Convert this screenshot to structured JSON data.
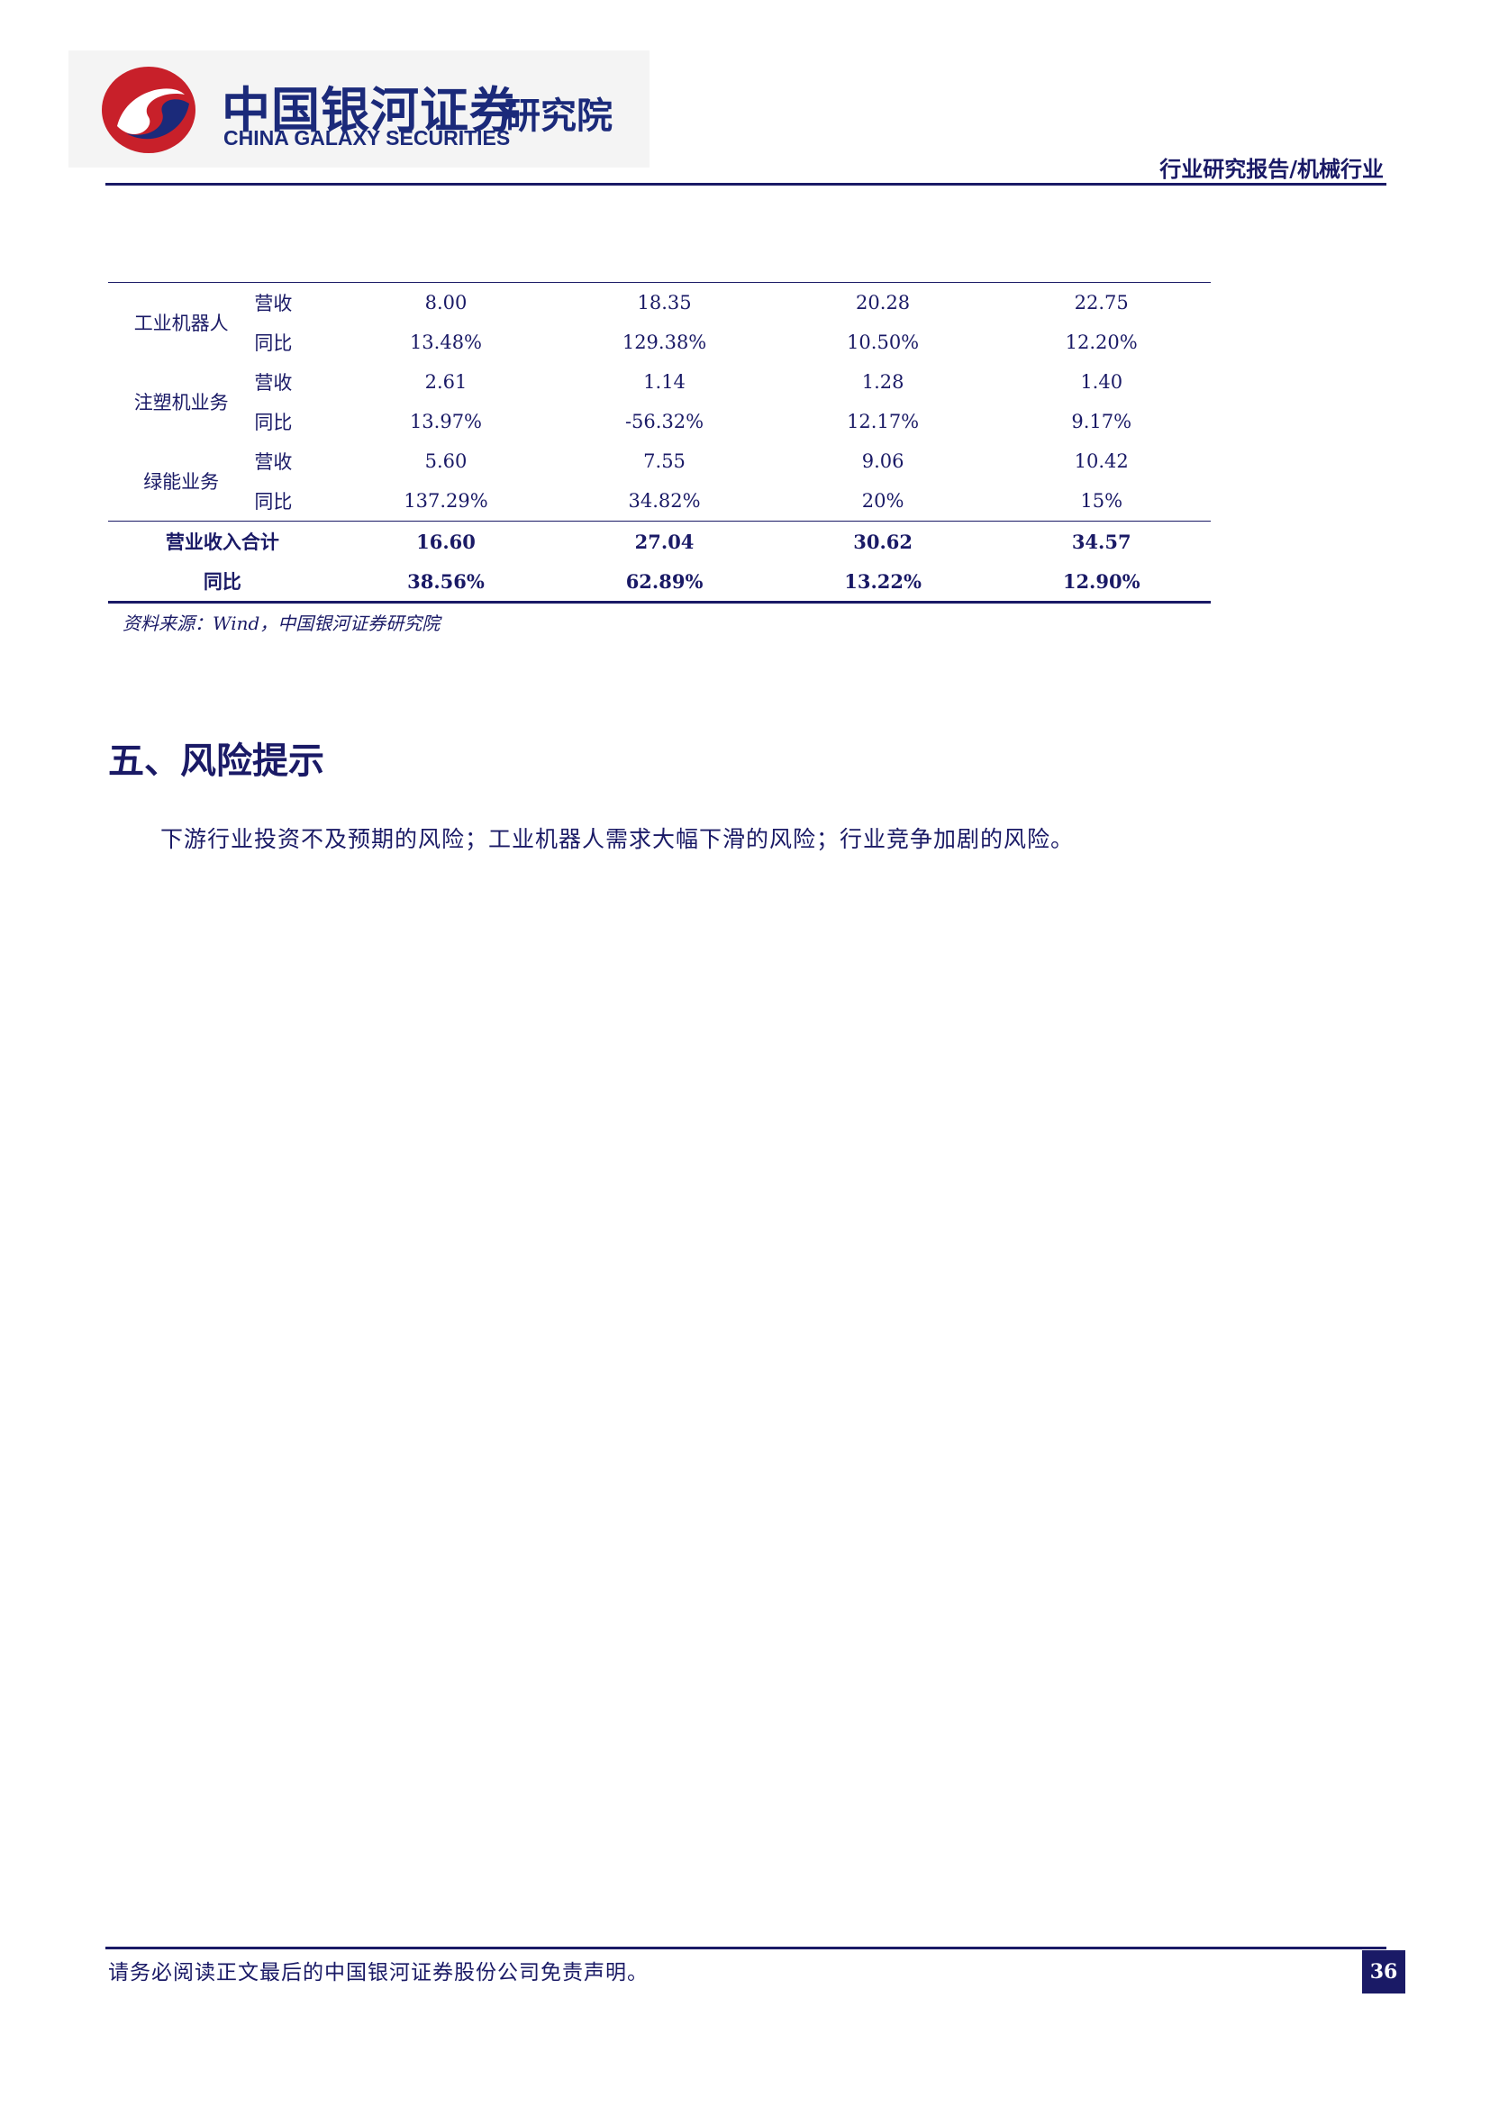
{
  "header": {
    "logo_cn": "中国银河证券",
    "logo_en": "CHINA GALAXY SECURITIES",
    "logo_inst": "研究院",
    "report_type": "行业研究报告/机械行业",
    "colors": {
      "brand_navy": "#1a1a66",
      "logo_red": "#c8202a",
      "logo_blue": "#1b2a7a"
    }
  },
  "table": {
    "segments": [
      {
        "name": "工业机器人",
        "rows": [
          {
            "label": "营收",
            "values": [
              "8.00",
              "18.35",
              "20.28",
              "22.75"
            ]
          },
          {
            "label": "同比",
            "values": [
              "13.48%",
              "129.38%",
              "10.50%",
              "12.20%"
            ]
          }
        ]
      },
      {
        "name": "注塑机业务",
        "rows": [
          {
            "label": "营收",
            "values": [
              "2.61",
              "1.14",
              "1.28",
              "1.40"
            ]
          },
          {
            "label": "同比",
            "values": [
              "13.97%",
              "-56.32%",
              "12.17%",
              "9.17%"
            ]
          }
        ]
      },
      {
        "name": "绿能业务",
        "rows": [
          {
            "label": "营收",
            "values": [
              "5.60",
              "7.55",
              "9.06",
              "10.42"
            ]
          },
          {
            "label": "同比",
            "values": [
              "137.29%",
              "34.82%",
              "20%",
              "15%"
            ]
          }
        ]
      }
    ],
    "totals": [
      {
        "label": "营业收入合计",
        "values": [
          "16.60",
          "27.04",
          "30.62",
          "34.57"
        ]
      },
      {
        "label": "同比",
        "values": [
          "38.56%",
          "62.89%",
          "13.22%",
          "12.90%"
        ]
      }
    ]
  },
  "source_note": "资料来源：Wind，中国银河证券研究院",
  "section": {
    "title": "五、风险提示",
    "paragraph": "下游行业投资不及预期的风险；工业机器人需求大幅下滑的风险；行业竞争加剧的风险。"
  },
  "footer": {
    "disclaimer": "请务必阅读正文最后的中国银河证券股份公司免责声明。",
    "page_number": "36"
  }
}
